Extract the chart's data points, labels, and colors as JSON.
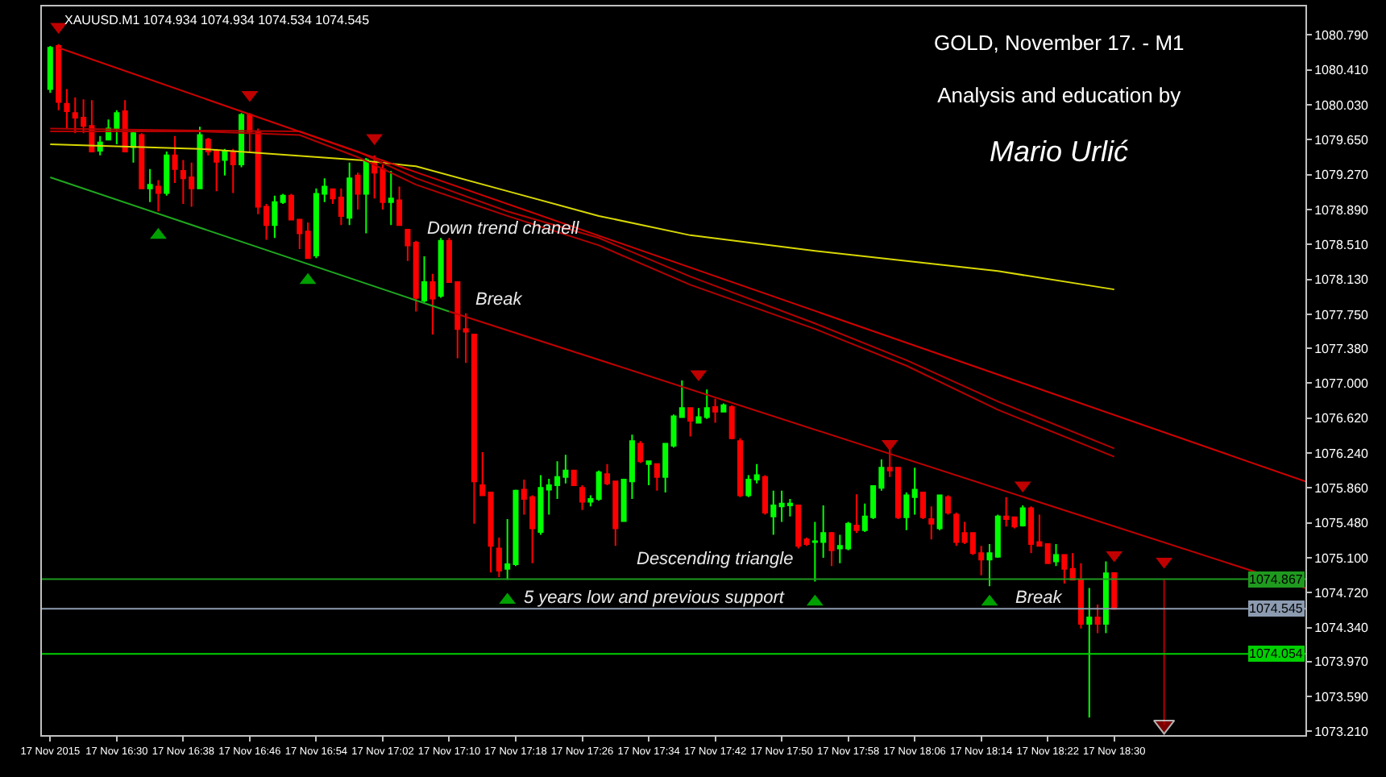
{
  "chart_data": {
    "type": "candlestick",
    "title": "GOLD, November 17. - M1",
    "subtitle": "Analysis and education by",
    "annotations": [
      "XAUUSD.M1 1074.934 1074.934 1074.534 1074.545",
      "Mario Urlić",
      "Down trend chanell",
      "Break",
      "Descending triangle",
      "5 years low and previous support",
      "Break"
    ],
    "x": [
      "2015-11-17T16:22",
      "2015-11-17T16:23",
      "2015-11-17T16:24",
      "2015-11-17T16:25",
      "2015-11-17T16:26",
      "2015-11-17T16:27",
      "2015-11-17T16:28",
      "2015-11-17T16:29",
      "2015-11-17T16:30",
      "2015-11-17T16:31",
      "2015-11-17T16:32",
      "2015-11-17T16:33",
      "2015-11-17T16:34",
      "2015-11-17T16:35",
      "2015-11-17T16:36",
      "2015-11-17T16:37",
      "2015-11-17T16:38",
      "2015-11-17T16:39",
      "2015-11-17T16:40",
      "2015-11-17T16:41",
      "2015-11-17T16:42",
      "2015-11-17T16:43",
      "2015-11-17T16:44",
      "2015-11-17T16:45",
      "2015-11-17T16:46",
      "2015-11-17T16:47",
      "2015-11-17T16:48",
      "2015-11-17T16:49",
      "2015-11-17T16:50",
      "2015-11-17T16:51",
      "2015-11-17T16:52",
      "2015-11-17T16:53",
      "2015-11-17T16:54",
      "2015-11-17T16:55",
      "2015-11-17T16:56",
      "2015-11-17T16:57",
      "2015-11-17T16:58",
      "2015-11-17T16:59",
      "2015-11-17T17:00",
      "2015-11-17T17:01",
      "2015-11-17T17:02",
      "2015-11-17T17:03",
      "2015-11-17T17:04",
      "2015-11-17T17:05",
      "2015-11-17T17:06",
      "2015-11-17T17:07",
      "2015-11-17T17:08",
      "2015-11-17T17:09",
      "2015-11-17T17:10",
      "2015-11-17T17:11",
      "2015-11-17T17:12",
      "2015-11-17T17:13",
      "2015-11-17T17:14",
      "2015-11-17T17:15",
      "2015-11-17T17:16",
      "2015-11-17T17:17",
      "2015-11-17T17:18",
      "2015-11-17T17:19",
      "2015-11-17T17:20",
      "2015-11-17T17:21",
      "2015-11-17T17:22",
      "2015-11-17T17:23",
      "2015-11-17T17:24",
      "2015-11-17T17:25",
      "2015-11-17T17:26",
      "2015-11-17T17:27",
      "2015-11-17T17:28",
      "2015-11-17T17:29",
      "2015-11-17T17:30",
      "2015-11-17T17:31",
      "2015-11-17T17:32",
      "2015-11-17T17:33",
      "2015-11-17T17:34",
      "2015-11-17T17:35",
      "2015-11-17T17:36",
      "2015-11-17T17:37",
      "2015-11-17T17:38",
      "2015-11-17T17:39",
      "2015-11-17T17:40",
      "2015-11-17T17:41",
      "2015-11-17T17:42",
      "2015-11-17T17:43",
      "2015-11-17T17:44",
      "2015-11-17T17:45",
      "2015-11-17T17:46",
      "2015-11-17T17:47",
      "2015-11-17T17:48",
      "2015-11-17T17:49",
      "2015-11-17T17:50",
      "2015-11-17T17:51",
      "2015-11-17T17:52",
      "2015-11-17T17:53",
      "2015-11-17T17:54",
      "2015-11-17T17:55",
      "2015-11-17T17:56",
      "2015-11-17T17:57",
      "2015-11-17T17:58",
      "2015-11-17T17:59",
      "2015-11-17T18:00",
      "2015-11-17T18:01",
      "2015-11-17T18:02",
      "2015-11-17T18:03",
      "2015-11-17T18:04",
      "2015-11-17T18:05",
      "2015-11-17T18:06",
      "2015-11-17T18:07",
      "2015-11-17T18:08",
      "2015-11-17T18:09",
      "2015-11-17T18:10",
      "2015-11-17T18:11",
      "2015-11-17T18:12",
      "2015-11-17T18:13",
      "2015-11-17T18:14",
      "2015-11-17T18:15",
      "2015-11-17T18:16",
      "2015-11-17T18:17",
      "2015-11-17T18:18",
      "2015-11-17T18:19",
      "2015-11-17T18:20",
      "2015-11-17T18:21",
      "2015-11-17T18:22",
      "2015-11-17T18:23",
      "2015-11-17T18:24",
      "2015-11-17T18:25",
      "2015-11-17T18:26",
      "2015-11-17T18:27",
      "2015-11-17T18:28",
      "2015-11-17T18:29",
      "2015-11-17T18:30"
    ],
    "ohlc": [
      [
        1080.2,
        1080.67,
        1080.16,
        1080.65
      ],
      [
        1080.67,
        1080.69,
        1079.97,
        1080.06
      ],
      [
        1080.04,
        1080.2,
        1079.77,
        1079.96
      ],
      [
        1079.94,
        1080.11,
        1079.72,
        1079.89
      ],
      [
        1079.89,
        1080.09,
        1079.72,
        1079.8
      ],
      [
        1079.8,
        1080.08,
        1079.52,
        1079.52
      ],
      [
        1079.53,
        1079.69,
        1079.48,
        1079.62
      ],
      [
        1079.65,
        1079.87,
        1079.65,
        1079.77
      ],
      [
        1079.77,
        1079.97,
        1079.6,
        1079.94
      ],
      [
        1079.96,
        1080.08,
        1079.52,
        1079.52
      ],
      [
        1079.57,
        1079.74,
        1079.4,
        1079.72
      ],
      [
        1079.7,
        1079.72,
        1079.12,
        1079.12
      ],
      [
        1079.12,
        1079.33,
        1078.97,
        1079.16
      ],
      [
        1079.14,
        1079.21,
        1078.87,
        1079.07
      ],
      [
        1079.07,
        1079.52,
        1079.04,
        1079.48
      ],
      [
        1079.48,
        1079.69,
        1079.18,
        1079.33
      ],
      [
        1079.31,
        1079.43,
        1078.95,
        1079.23
      ],
      [
        1079.24,
        1079.4,
        1078.92,
        1079.12
      ],
      [
        1079.12,
        1079.79,
        1079.12,
        1079.7
      ],
      [
        1079.65,
        1079.67,
        1079.48,
        1079.52
      ],
      [
        1079.53,
        1079.55,
        1079.09,
        1079.41
      ],
      [
        1079.43,
        1079.55,
        1079.26,
        1079.52
      ],
      [
        1079.52,
        1079.55,
        1079.07,
        1079.38
      ],
      [
        1079.38,
        1079.94,
        1079.35,
        1079.92
      ],
      [
        1079.92,
        1079.94,
        1079.52,
        1079.74
      ],
      [
        1079.74,
        1079.77,
        1078.84,
        1078.92
      ],
      [
        1078.92,
        1078.95,
        1078.56,
        1078.72
      ],
      [
        1078.72,
        1079.04,
        1078.58,
        1078.97
      ],
      [
        1078.97,
        1079.06,
        1078.95,
        1079.04
      ],
      [
        1079.04,
        1079.06,
        1078.77,
        1078.78
      ],
      [
        1078.78,
        1078.78,
        1078.46,
        1078.63
      ],
      [
        1078.65,
        1078.75,
        1078.36,
        1078.36
      ],
      [
        1078.39,
        1079.12,
        1078.36,
        1079.06
      ],
      [
        1079.06,
        1079.23,
        1078.97,
        1079.14
      ],
      [
        1079.11,
        1079.12,
        1078.95,
        1079.01
      ],
      [
        1079.02,
        1079.12,
        1078.72,
        1078.82
      ],
      [
        1078.8,
        1079.4,
        1078.72,
        1079.23
      ],
      [
        1079.26,
        1079.29,
        1078.89,
        1079.06
      ],
      [
        1079.06,
        1079.45,
        1078.63,
        1079.43
      ],
      [
        1079.4,
        1079.48,
        1079.01,
        1079.29
      ],
      [
        1079.33,
        1079.38,
        1078.89,
        1078.97
      ],
      [
        1078.97,
        1079.31,
        1078.72,
        1079.01
      ],
      [
        1078.99,
        1079.14,
        1078.72,
        1078.72
      ],
      [
        1078.67,
        1078.68,
        1078.33,
        1078.5
      ],
      [
        1078.53,
        1078.55,
        1077.78,
        1077.93
      ],
      [
        1077.9,
        1078.38,
        1077.88,
        1078.1
      ],
      [
        1078.1,
        1078.19,
        1077.53,
        1077.92
      ],
      [
        1077.95,
        1078.58,
        1077.93,
        1078.55
      ],
      [
        1078.55,
        1078.58,
        1078.1,
        1078.1
      ],
      [
        1078.1,
        1078.1,
        1077.27,
        1077.59
      ],
      [
        1077.59,
        1077.76,
        1077.22,
        1077.56
      ],
      [
        1077.53,
        1077.53,
        1075.47,
        1075.93
      ],
      [
        1075.89,
        1076.25,
        1075.78,
        1075.78
      ],
      [
        1075.81,
        1075.81,
        1074.94,
        1075.23
      ],
      [
        1075.2,
        1075.32,
        1074.89,
        1074.96
      ],
      [
        1074.98,
        1075.52,
        1074.86,
        1075.03
      ],
      [
        1075.03,
        1075.84,
        1075.01,
        1075.83
      ],
      [
        1075.84,
        1075.95,
        1075.57,
        1075.74
      ],
      [
        1075.76,
        1075.78,
        1075.04,
        1075.42
      ],
      [
        1075.38,
        1076.0,
        1075.35,
        1075.86
      ],
      [
        1075.84,
        1075.96,
        1075.57,
        1075.89
      ],
      [
        1075.89,
        1076.15,
        1075.74,
        1075.98
      ],
      [
        1075.98,
        1076.22,
        1075.91,
        1076.05
      ],
      [
        1076.05,
        1076.05,
        1075.89,
        1075.89
      ],
      [
        1075.86,
        1075.89,
        1075.62,
        1075.71
      ],
      [
        1075.71,
        1075.78,
        1075.66,
        1075.74
      ],
      [
        1075.74,
        1076.05,
        1075.72,
        1076.03
      ],
      [
        1076.01,
        1076.12,
        1075.89,
        1075.91
      ],
      [
        1075.93,
        1075.93,
        1075.23,
        1075.42
      ],
      [
        1075.5,
        1075.96,
        1075.49,
        1075.95
      ],
      [
        1075.93,
        1076.44,
        1075.74,
        1076.37
      ],
      [
        1076.34,
        1076.37,
        1076.13,
        1076.15
      ],
      [
        1076.12,
        1076.15,
        1075.89,
        1076.15
      ],
      [
        1076.12,
        1076.12,
        1075.83,
        1075.98
      ],
      [
        1075.98,
        1076.35,
        1075.81,
        1076.34
      ],
      [
        1076.32,
        1076.66,
        1076.3,
        1076.64
      ],
      [
        1076.63,
        1077.03,
        1076.63,
        1076.73
      ],
      [
        1076.73,
        1076.73,
        1076.42,
        1076.59
      ],
      [
        1076.57,
        1076.73,
        1076.56,
        1076.63
      ],
      [
        1076.63,
        1076.93,
        1076.61,
        1076.73
      ],
      [
        1076.74,
        1076.83,
        1076.57,
        1076.69
      ],
      [
        1076.69,
        1076.78,
        1076.68,
        1076.76
      ],
      [
        1076.74,
        1076.76,
        1076.39,
        1076.4
      ],
      [
        1076.37,
        1076.4,
        1075.76,
        1075.78
      ],
      [
        1075.78,
        1076.0,
        1075.76,
        1075.95
      ],
      [
        1075.95,
        1076.12,
        1075.91,
        1076.0
      ],
      [
        1075.98,
        1076.0,
        1075.57,
        1075.59
      ],
      [
        1075.55,
        1075.83,
        1075.35,
        1075.67
      ],
      [
        1075.66,
        1075.83,
        1075.49,
        1075.69
      ],
      [
        1075.67,
        1075.74,
        1075.55,
        1075.69
      ],
      [
        1075.67,
        1075.67,
        1075.2,
        1075.23
      ],
      [
        1075.3,
        1075.32,
        1075.23,
        1075.25
      ],
      [
        1075.27,
        1075.49,
        1074.84,
        1075.28
      ],
      [
        1075.27,
        1075.67,
        1075.1,
        1075.37
      ],
      [
        1075.37,
        1075.38,
        1075.01,
        1075.18
      ],
      [
        1075.2,
        1075.35,
        1075.04,
        1075.23
      ],
      [
        1075.2,
        1075.49,
        1075.18,
        1075.47
      ],
      [
        1075.45,
        1075.79,
        1075.37,
        1075.4
      ],
      [
        1075.4,
        1075.69,
        1075.38,
        1075.55
      ],
      [
        1075.54,
        1075.89,
        1075.52,
        1075.88
      ],
      [
        1075.86,
        1076.17,
        1075.83,
        1076.08
      ],
      [
        1076.08,
        1076.29,
        1075.98,
        1076.05
      ],
      [
        1076.08,
        1076.08,
        1075.52,
        1075.54
      ],
      [
        1075.54,
        1075.81,
        1075.4,
        1075.78
      ],
      [
        1075.76,
        1076.08,
        1075.57,
        1075.84
      ],
      [
        1075.81,
        1075.81,
        1075.52,
        1075.54
      ],
      [
        1075.52,
        1075.66,
        1075.3,
        1075.47
      ],
      [
        1075.42,
        1075.78,
        1075.4,
        1075.78
      ],
      [
        1075.76,
        1075.78,
        1075.57,
        1075.59
      ],
      [
        1075.57,
        1075.59,
        1075.23,
        1075.27
      ],
      [
        1075.37,
        1075.49,
        1075.25,
        1075.27
      ],
      [
        1075.37,
        1075.37,
        1075.13,
        1075.15
      ],
      [
        1075.15,
        1075.23,
        1074.91,
        1075.08
      ],
      [
        1075.08,
        1075.25,
        1074.79,
        1075.15
      ],
      [
        1075.11,
        1075.57,
        1075.1,
        1075.55
      ],
      [
        1075.55,
        1075.76,
        1075.44,
        1075.52
      ],
      [
        1075.54,
        1075.55,
        1075.42,
        1075.44
      ],
      [
        1075.45,
        1075.67,
        1075.44,
        1075.64
      ],
      [
        1075.64,
        1075.66,
        1075.15,
        1075.25
      ],
      [
        1075.27,
        1075.57,
        1075.23,
        1075.23
      ],
      [
        1075.25,
        1075.25,
        1075.04,
        1075.04
      ],
      [
        1075.06,
        1075.25,
        1075.01,
        1075.13
      ],
      [
        1075.13,
        1075.13,
        1074.82,
        1074.98
      ],
      [
        1074.98,
        1075.15,
        1074.86,
        1074.86
      ],
      [
        1074.86,
        1075.04,
        1074.33,
        1074.38
      ],
      [
        1074.38,
        1074.77,
        1073.36,
        1074.45
      ],
      [
        1074.45,
        1074.59,
        1074.28,
        1074.38
      ],
      [
        1074.38,
        1075.06,
        1074.28,
        1074.93
      ],
      [
        1074.934,
        1074.934,
        1074.534,
        1074.545
      ]
    ],
    "colors": [
      "#00ff00",
      "#ff0000",
      "#ff0000",
      "#ff0000",
      "#ff0000",
      "#ff0000",
      "#00ff00",
      "#00ff00",
      "#00ff00",
      "#ff0000",
      "#00ff00",
      "#ff0000",
      "#00ff00",
      "#ff0000",
      "#00ff00",
      "#ff0000",
      "#ff0000",
      "#ff0000",
      "#00ff00",
      "#ff0000",
      "#ff0000",
      "#00ff00",
      "#ff0000",
      "#00ff00",
      "#ff0000",
      "#ff0000",
      "#ff0000",
      "#00ff00",
      "#00ff00",
      "#ff0000",
      "#ff0000",
      "#ff0000",
      "#00ff00",
      "#00ff00",
      "#ff0000",
      "#ff0000",
      "#00ff00",
      "#ff0000",
      "#00ff00",
      "#ff0000",
      "#ff0000",
      "#00ff00",
      "#ff0000",
      "#ff0000",
      "#ff0000",
      "#00ff00",
      "#ff0000",
      "#00ff00",
      "#ff0000",
      "#ff0000",
      "#ff0000",
      "#ff0000",
      "#ff0000",
      "#ff0000",
      "#ff0000",
      "#00ff00",
      "#00ff00",
      "#ff0000",
      "#ff0000",
      "#00ff00",
      "#00ff00",
      "#00ff00",
      "#00ff00",
      "#ff0000",
      "#ff0000",
      "#00ff00",
      "#00ff00",
      "#ff0000",
      "#ff0000",
      "#00ff00",
      "#00ff00",
      "#ff0000",
      "#00ff00",
      "#ff0000",
      "#00ff00",
      "#00ff00",
      "#00ff00",
      "#ff0000",
      "#00ff00",
      "#00ff00",
      "#ff0000",
      "#00ff00",
      "#ff0000",
      "#ff0000",
      "#00ff00",
      "#00ff00",
      "#ff0000",
      "#00ff00",
      "#00ff00",
      "#00ff00",
      "#ff0000",
      "#ff0000",
      "#00ff00",
      "#00ff00",
      "#ff0000",
      "#00ff00",
      "#00ff00",
      "#ff0000",
      "#00ff00",
      "#00ff00",
      "#00ff00",
      "#ff0000",
      "#ff0000",
      "#00ff00",
      "#00ff00",
      "#ff0000",
      "#ff0000",
      "#00ff00",
      "#ff0000",
      "#ff0000",
      "#ff0000",
      "#ff0000",
      "#ff0000",
      "#00ff00",
      "#00ff00",
      "#ff0000",
      "#ff0000",
      "#00ff00",
      "#ff0000",
      "#ff0000",
      "#ff0000",
      "#00ff00",
      "#ff0000",
      "#ff0000",
      "#ff0000",
      "#00ff00",
      "#ff0000",
      "#00ff00",
      "#ff0000"
    ],
    "series": [
      {
        "type": "line",
        "color": "#d8d800",
        "x": [
          "2015-11-17T16:22",
          "2015-11-17T16:40",
          "2015-11-17T16:59",
          "2015-11-17T17:06",
          "2015-11-17T17:17",
          "2015-11-17T17:28",
          "2015-11-17T17:39",
          "2015-11-17T17:54",
          "2015-11-17T18:05",
          "2015-11-17T18:16",
          "2015-11-17T18:30"
        ],
        "values": [
          1079.6,
          1079.55,
          1079.43,
          1079.36,
          1079.09,
          1078.82,
          1078.61,
          1078.44,
          1078.33,
          1078.22,
          1078.02
        ]
      },
      {
        "type": "line",
        "color": "#b40000",
        "x": [
          "2015-11-17T16:22",
          "2015-11-17T16:40",
          "2015-11-17T16:52",
          "2015-11-17T16:59",
          "2015-11-17T17:06",
          "2015-11-17T17:17",
          "2015-11-17T17:28",
          "2015-11-17T17:39",
          "2015-11-17T17:54",
          "2015-11-17T18:05",
          "2015-11-17T18:16",
          "2015-11-17T18:30"
        ],
        "values": [
          1079.77,
          1079.75,
          1079.74,
          1079.52,
          1079.23,
          1078.87,
          1078.58,
          1078.16,
          1077.65,
          1077.25,
          1076.8,
          1076.29
        ]
      },
      {
        "type": "line",
        "color": "#b40000",
        "x": [
          "2015-11-17T16:22",
          "2015-11-17T16:40",
          "2015-11-17T16:52",
          "2015-11-17T16:59",
          "2015-11-17T17:06",
          "2015-11-17T17:17",
          "2015-11-17T17:28",
          "2015-11-17T17:39",
          "2015-11-17T17:54",
          "2015-11-17T18:05",
          "2015-11-17T18:16",
          "2015-11-17T18:30"
        ],
        "values": [
          1079.74,
          1079.74,
          1079.7,
          1079.46,
          1079.16,
          1078.82,
          1078.5,
          1078.07,
          1077.59,
          1077.19,
          1076.71,
          1076.2
        ]
      },
      {
        "type": "line",
        "color": "#d00000",
        "x": [
          "2015-11-17T16:23",
          "2015-11-17T18:53"
        ],
        "values": [
          1080.65,
          1075.93
        ]
      },
      {
        "type": "line",
        "color": "#1fa81f",
        "x": [
          "2015-11-17T16:22",
          "2015-11-17T17:10"
        ],
        "values": [
          1079.24,
          1077.78
        ]
      },
      {
        "type": "line",
        "color": "#c00000",
        "x": [
          "2015-11-17T17:10",
          "2015-11-17T18:53"
        ],
        "values": [
          1077.78,
          1074.77
        ]
      },
      {
        "type": "line",
        "color": "#b00000",
        "marker": "triangle",
        "x": [
          "2015-11-17T18:36",
          "2015-11-17T18:36"
        ],
        "values": [
          1074.86,
          1073.28
        ]
      },
      {
        "type": "scatter",
        "color": "#c00000",
        "marker": "triangle-down",
        "x": [
          "2015-11-17T16:23",
          "2015-11-17T16:46",
          "2015-11-17T17:01",
          "2015-11-17T17:40",
          "2015-11-17T18:03",
          "2015-11-17T18:19",
          "2015-11-17T18:30",
          "2015-11-17T18:36"
        ],
        "values": [
          1080.88,
          1080.14,
          1079.67,
          1077.1,
          1076.34,
          1075.89,
          1075.13,
          1075.06
        ]
      },
      {
        "type": "scatter",
        "color": "#00a000",
        "marker": "triangle",
        "x": [
          "2015-11-17T16:35",
          "2015-11-17T16:53",
          "2015-11-17T17:17",
          "2015-11-17T17:54",
          "2015-11-17T18:15"
        ],
        "values": [
          1078.61,
          1078.12,
          1074.64,
          1074.62,
          1074.62
        ]
      }
    ],
    "ref_lines": [
      {
        "axis": "y",
        "value": 1074.867,
        "label": "1074.867",
        "color": "#1f9a1f"
      },
      {
        "axis": "y",
        "value": 1074.545,
        "label": "1074.545",
        "color": "#8c9bb0"
      },
      {
        "axis": "y",
        "value": 1074.054,
        "label": "1074.054",
        "color": "#00d000"
      }
    ],
    "xlim": [
      "2015-11-17T16:21",
      "2015-11-17T18:53"
    ],
    "xticks": [
      {
        "value": "2015-11-17T16:22",
        "label": "17 Nov 2015"
      },
      {
        "value": "2015-11-17T16:30",
        "label": "17 Nov 16:30"
      },
      {
        "value": "2015-11-17T16:38",
        "label": "17 Nov 16:38"
      },
      {
        "value": "2015-11-17T16:46",
        "label": "17 Nov 16:46"
      },
      {
        "value": "2015-11-17T16:54",
        "label": "17 Nov 16:54"
      },
      {
        "value": "2015-11-17T17:02",
        "label": "17 Nov 17:02"
      },
      {
        "value": "2015-11-17T17:10",
        "label": "17 Nov 17:10"
      },
      {
        "value": "2015-11-17T17:18",
        "label": "17 Nov 17:18"
      },
      {
        "value": "2015-11-17T17:26",
        "label": "17 Nov 17:26"
      },
      {
        "value": "2015-11-17T17:34",
        "label": "17 Nov 17:34"
      },
      {
        "value": "2015-11-17T17:42",
        "label": "17 Nov 17:42"
      },
      {
        "value": "2015-11-17T17:50",
        "label": "17 Nov 17:50"
      },
      {
        "value": "2015-11-17T17:58",
        "label": "17 Nov 17:58"
      },
      {
        "value": "2015-11-17T18:06",
        "label": "17 Nov 18:06"
      },
      {
        "value": "2015-11-17T18:14",
        "label": "17 Nov 18:14"
      },
      {
        "value": "2015-11-17T18:22",
        "label": "17 Nov 18:22"
      },
      {
        "value": "2015-11-17T18:30",
        "label": "17 Nov 18:30"
      }
    ],
    "ylim": [
      1073.17,
      1081.1
    ],
    "yticks": [
      {
        "value": 1080.79,
        "label": "1080.790"
      },
      {
        "value": 1080.41,
        "label": "1080.410"
      },
      {
        "value": 1080.03,
        "label": "1080.030"
      },
      {
        "value": 1079.65,
        "label": "1079.650"
      },
      {
        "value": 1079.27,
        "label": "1079.270"
      },
      {
        "value": 1078.89,
        "label": "1078.890"
      },
      {
        "value": 1078.51,
        "label": "1078.510"
      },
      {
        "value": 1078.13,
        "label": "1078.130"
      },
      {
        "value": 1077.75,
        "label": "1077.750"
      },
      {
        "value": 1077.38,
        "label": "1077.380"
      },
      {
        "value": 1077.0,
        "label": "1077.000"
      },
      {
        "value": 1076.62,
        "label": "1076.620"
      },
      {
        "value": 1076.24,
        "label": "1076.240"
      },
      {
        "value": 1075.86,
        "label": "1075.860"
      },
      {
        "value": 1075.48,
        "label": "1075.480"
      },
      {
        "value": 1075.1,
        "label": "1075.100"
      },
      {
        "value": 1074.72,
        "label": "1074.720"
      },
      {
        "value": 1074.34,
        "label": "1074.340"
      },
      {
        "value": 1073.97,
        "label": "1073.970"
      },
      {
        "value": 1073.59,
        "label": "1073.590"
      },
      {
        "value": 1073.21,
        "label": "1073.210"
      }
    ],
    "grid": false
  }
}
